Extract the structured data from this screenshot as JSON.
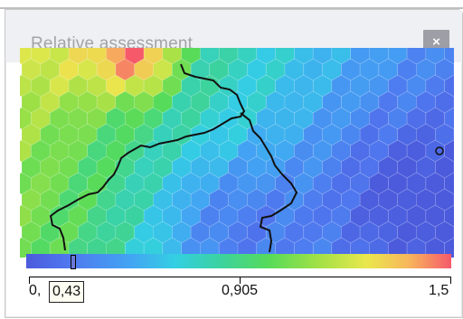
{
  "window": {
    "title": "Relative assessment",
    "close_label": "×"
  },
  "scale": {
    "min_label": "0,",
    "current_value": "0,43",
    "mid_label": "0,905",
    "max_label": "1,5",
    "current_fraction": 0.1
  },
  "colors": {
    "low": "#4c5bdc",
    "mid": "#56db5a",
    "high": "#f65a6a"
  },
  "icons": {
    "close": "close-icon"
  }
}
